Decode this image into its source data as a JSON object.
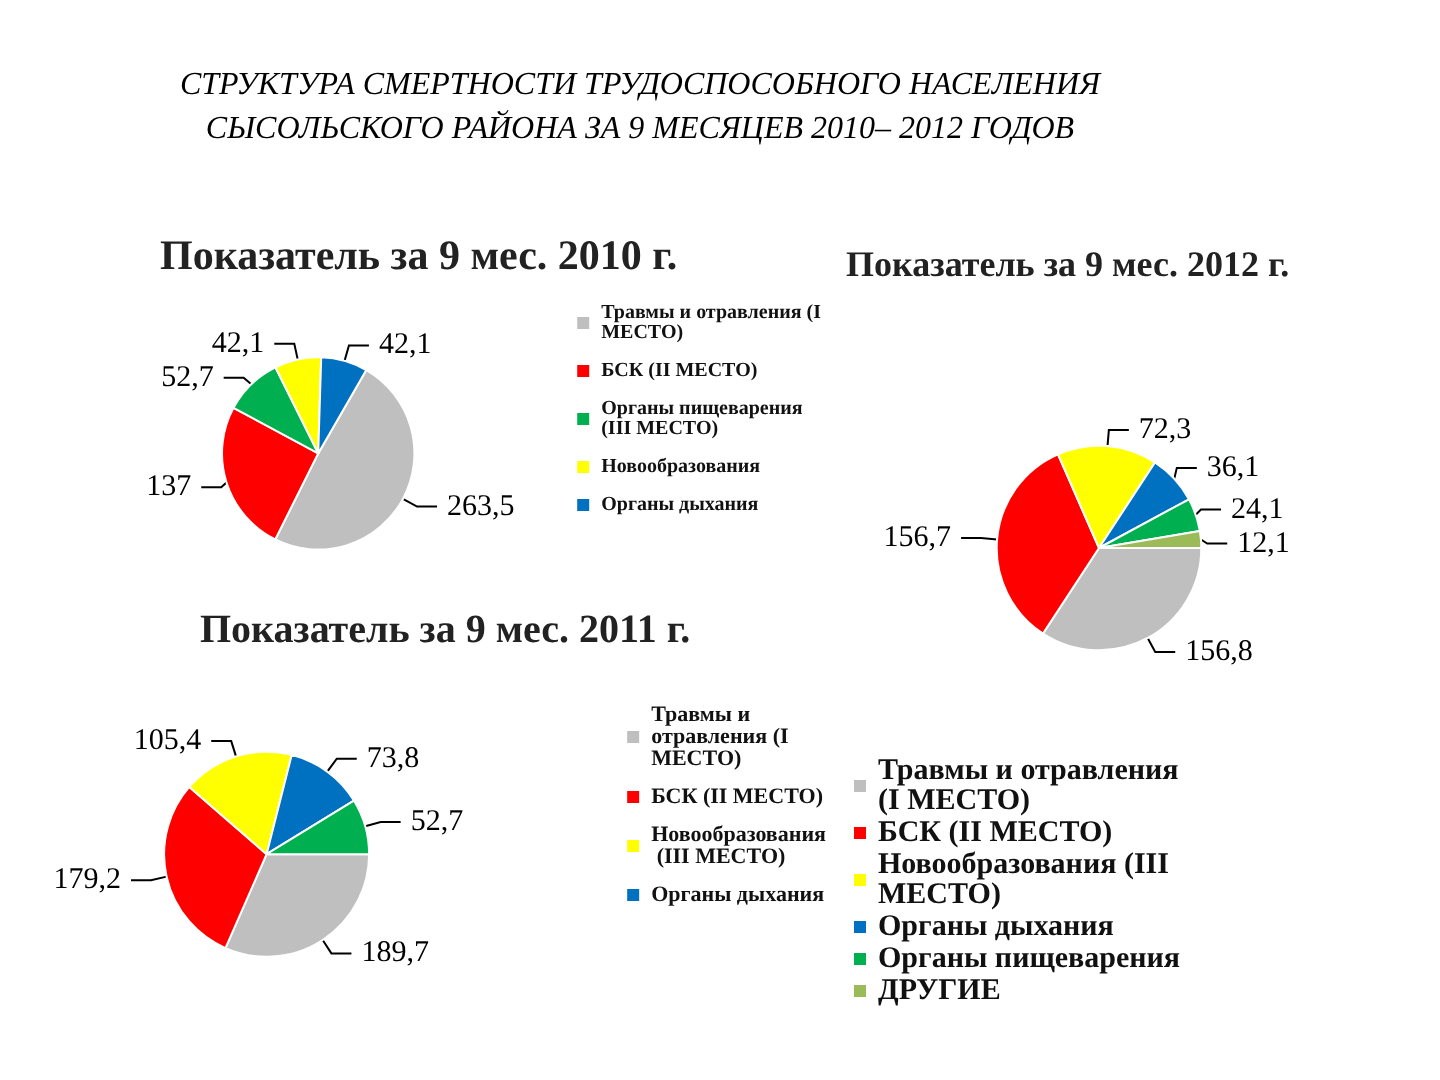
{
  "chart_data": [
    {
      "type": "pie",
      "title": "Показатель за 9 мес. 2010 г.",
      "annotations": [
        "СТРУКТУРА СМЕРТНОСТИ  ТРУДОСПОСОБНОГО НАСЕЛЕНИЯ СЫСОЛЬСКОГО РАЙОНА ЗА 9 МЕСЯЦЕВ 2010– 2012 ГОДОВ"
      ],
      "categories": [
        "Травмы и отравления (I МЕСТО)",
        "БСК (II МЕСТО)",
        "Органы пищеварения (III МЕСТО)",
        "Новообразования",
        "Органы дыхания"
      ],
      "values": [
        263.5,
        137,
        52.7,
        42.1,
        42.1
      ],
      "value_labels": [
        "263,5",
        "137",
        "52,7",
        "42,1",
        "42,1"
      ],
      "colors": [
        "#bfbfbf",
        "#ff0000",
        "#00b050",
        "#ffff00",
        "#0070c0"
      ],
      "legend": "right"
    },
    {
      "type": "pie",
      "title": "Показатель за 9 мес. 2012 г.",
      "categories": [
        "Травмы и отравления (I МЕСТО)",
        "БСК (II МЕСТО)",
        "Новообразования (III МЕСТО)",
        "Органы дыхания",
        "Органы пищеварения",
        "ДРУГИЕ"
      ],
      "values": [
        156.8,
        156.7,
        72.3,
        36.1,
        24.1,
        12.1
      ],
      "value_labels": [
        "156,8",
        "156,7",
        "72,3",
        "36,1",
        "24,1",
        "12,1"
      ],
      "colors": [
        "#bfbfbf",
        "#ff0000",
        "#ffff00",
        "#0070c0",
        "#00b050",
        "#9bbb59"
      ],
      "legend": "bottom"
    },
    {
      "type": "pie",
      "title": "Показатель за 9 мес. 2011 г.",
      "categories": [
        "Травмы и отравления (I МЕСТО)",
        "БСК (II МЕСТО)",
        "Новообразования (III МЕСТО)",
        "Органы дыхания",
        null
      ],
      "values": [
        189.7,
        179.2,
        105.4,
        73.8,
        52.7
      ],
      "value_labels": [
        "189,7",
        "179,2",
        "105,4",
        "73,8",
        "52,7"
      ],
      "colors": [
        "#bfbfbf",
        "#ff0000",
        "#ffff00",
        "#0070c0",
        "#00b050"
      ],
      "legend": "right"
    }
  ]
}
